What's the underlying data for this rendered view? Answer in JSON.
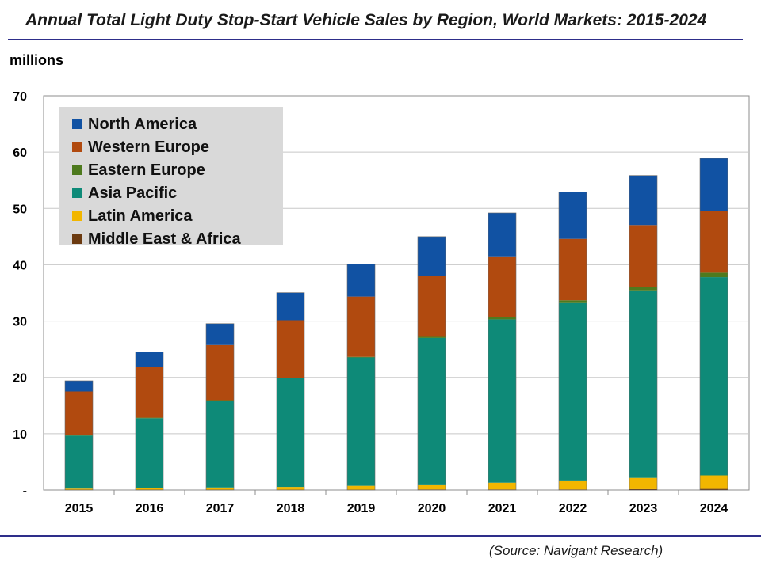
{
  "title": "Annual Total Light Duty Stop-Start Vehicle Sales by Region, World Markets: 2015-2024",
  "unit_label": "millions",
  "source": "(Source: Navigant Research)",
  "chart_data": {
    "type": "bar",
    "stacked": true,
    "title": "Annual Total Light Duty Stop-Start Vehicle Sales by Region, World Markets: 2015-2024",
    "xlabel": "",
    "ylabel": "millions",
    "ylim": [
      0,
      70
    ],
    "yticks": [
      0,
      10,
      20,
      30,
      40,
      50,
      60,
      70
    ],
    "ytick_labels": [
      "-",
      "10",
      "20",
      "30",
      "40",
      "50",
      "60",
      "70"
    ],
    "grid": true,
    "legend_position": "top-left",
    "categories": [
      "2015",
      "2016",
      "2017",
      "2018",
      "2019",
      "2020",
      "2021",
      "2022",
      "2023",
      "2024"
    ],
    "series": [
      {
        "name": "Middle East & Africa",
        "color": "#6b3a10",
        "values": [
          0.05,
          0.05,
          0.05,
          0.05,
          0.05,
          0.1,
          0.1,
          0.1,
          0.15,
          0.2
        ]
      },
      {
        "name": "Latin America",
        "color": "#f2b600",
        "values": [
          0.2,
          0.3,
          0.4,
          0.5,
          0.7,
          0.9,
          1.2,
          1.6,
          2.0,
          2.4
        ]
      },
      {
        "name": "Asia Pacific",
        "color": "#0e8a78",
        "values": [
          9.4,
          12.4,
          15.4,
          19.3,
          22.8,
          26.0,
          29.0,
          31.5,
          33.3,
          35.2
        ]
      },
      {
        "name": "Eastern Europe",
        "color": "#4e7a1e",
        "values": [
          0.05,
          0.1,
          0.1,
          0.1,
          0.1,
          0.2,
          0.4,
          0.5,
          0.6,
          0.8
        ]
      },
      {
        "name": "Western Europe",
        "color": "#b14a0f",
        "values": [
          7.8,
          9.0,
          9.8,
          10.2,
          10.7,
          10.8,
          10.8,
          10.9,
          11.0,
          11.0
        ]
      },
      {
        "name": "North America",
        "color": "#1152a3",
        "values": [
          1.9,
          2.7,
          3.8,
          4.9,
          5.8,
          7.0,
          7.7,
          8.3,
          8.8,
          9.3
        ]
      }
    ],
    "legend_order": [
      "North America",
      "Western Europe",
      "Eastern Europe",
      "Asia Pacific",
      "Latin America",
      "Middle East & Africa"
    ]
  }
}
